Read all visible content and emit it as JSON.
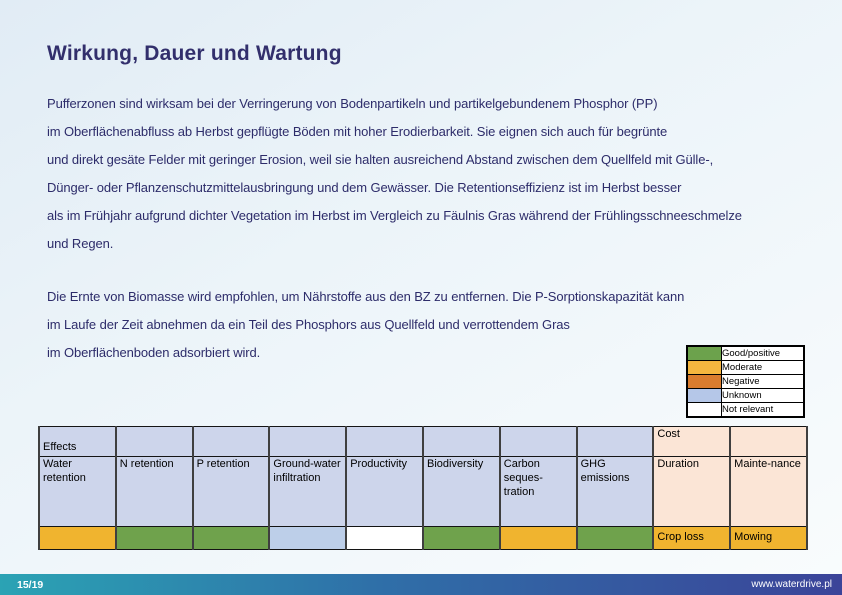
{
  "slide": {
    "title": "Wirkung, Dauer und Wartung",
    "paragraph1": "Pufferzonen sind wirksam bei der Verringerung von Bodenpartikeln und partikelgebundenem Phosphor (PP)\nim Oberflächenabfluss ab Herbst gepflügte Böden mit hoher Erodierbarkeit. Sie eignen sich auch für begrünte\nund direkt gesäte Felder mit geringer Erosion, weil sie halten ausreichend Abstand zwischen dem Quellfeld mit Gülle-,\nDünger- oder Pflanzenschutzmittelausbringung und dem Gewässer. Die Retentionseffizienz ist im Herbst besser\nals im Frühjahr aufgrund dichter Vegetation im Herbst im Vergleich zu Fäulnis Gras während der Frühlingsschneeschmelze\nund Regen.",
    "paragraph2": "Die Ernte von Biomasse wird empfohlen, um Nährstoffe aus den BZ zu entfernen. Die P-Sorptionskapazität kann\nim Laufe der Zeit abnehmen da ein Teil des Phosphors aus Quellfeld und verrottendem Gras\nim Oberflächenboden adsorbiert wird."
  },
  "legend": {
    "items": [
      {
        "id": "good-positive",
        "label": "Good/positive",
        "color": "#6CA24C"
      },
      {
        "id": "moderate",
        "label": "Moderate",
        "color": "#F5B63F"
      },
      {
        "id": "negative",
        "label": "Negative",
        "color": "#DA7C2E"
      },
      {
        "id": "unknown",
        "label": "Unknown",
        "color": "#B5C7E8"
      },
      {
        "id": "not-relevant",
        "label": "Not relevant",
        "color": "#FFFFFF"
      }
    ]
  },
  "table": {
    "group_header": {
      "effects": "Effects",
      "cost": "Cost"
    },
    "columns": [
      {
        "id": "water-retention",
        "header": "Water\nretention",
        "group": "effects",
        "rating": "moderate",
        "note": ""
      },
      {
        "id": "n-retention",
        "header": "N retention",
        "group": "effects",
        "rating": "good",
        "note": ""
      },
      {
        "id": "p-retention",
        "header": "P retention",
        "group": "effects",
        "rating": "good",
        "note": ""
      },
      {
        "id": "ground-water-infiltration",
        "header": "Ground-water\ninfiltration",
        "group": "effects",
        "rating": "unknown",
        "note": ""
      },
      {
        "id": "productivity",
        "header": "Productivity",
        "group": "effects",
        "rating": "not_relevant",
        "note": ""
      },
      {
        "id": "biodiversity",
        "header": "Biodiversity",
        "group": "effects",
        "rating": "good",
        "note": ""
      },
      {
        "id": "carbon-sequestration",
        "header": "Carbon\nseques-\ntration",
        "group": "effects",
        "rating": "moderate",
        "note": ""
      },
      {
        "id": "ghg-emissions",
        "header": "GHG\nemissions",
        "group": "effects",
        "rating": "good",
        "note": ""
      },
      {
        "id": "duration",
        "header": "Duration",
        "group": "cost",
        "rating": "moderate",
        "note": "Crop loss"
      },
      {
        "id": "maintenance",
        "header": "Mainte-nance",
        "group": "cost",
        "rating": "moderate",
        "note": "Mowing"
      }
    ]
  },
  "footer": {
    "page": "15/19",
    "website": "www.waterdrive.pl"
  },
  "colors": {
    "good": "#6FA24C",
    "moderate": "#F0B42F",
    "negative": "#DA7C2E",
    "unknown": "#BDCFE9",
    "not_relevant": "#FFFFFF",
    "header_effects_bg": "#CDD5EB",
    "header_cost_bg": "#FBE5D6",
    "title_color": "#322F6C",
    "body_text_color": "#2D2C6A",
    "footer_gradient_left": "#2BA3B4",
    "footer_gradient_right": "#3B4499"
  }
}
